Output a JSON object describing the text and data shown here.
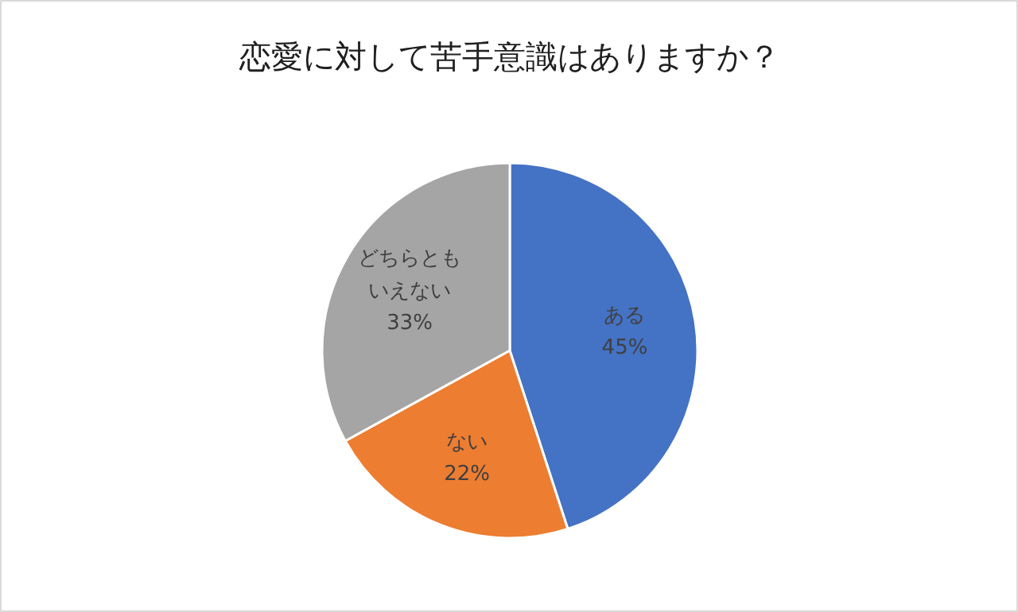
{
  "chart_data": {
    "type": "pie",
    "title": "恋愛に対して苦手意識はありますか？",
    "categories": [
      "ある",
      "ない",
      "どちらともいえない"
    ],
    "values": [
      45,
      22,
      33
    ],
    "colors": [
      "#4472c4",
      "#ed7d31",
      "#a5a5a5"
    ],
    "value_labels": [
      "45%",
      "22%",
      "33%"
    ]
  }
}
